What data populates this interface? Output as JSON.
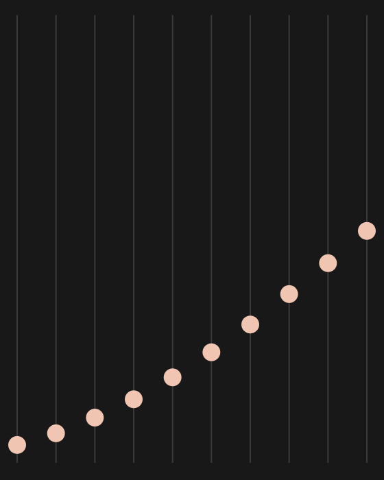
{
  "chart_data": {
    "type": "dot",
    "values": [
      4.0,
      6.6,
      10.1,
      14.2,
      19.1,
      24.7,
      30.9,
      37.7,
      44.6,
      51.8
    ],
    "color": "#f0c5b2",
    "track_color": "#3a3a3a",
    "ylim": [
      0,
      100
    ]
  }
}
